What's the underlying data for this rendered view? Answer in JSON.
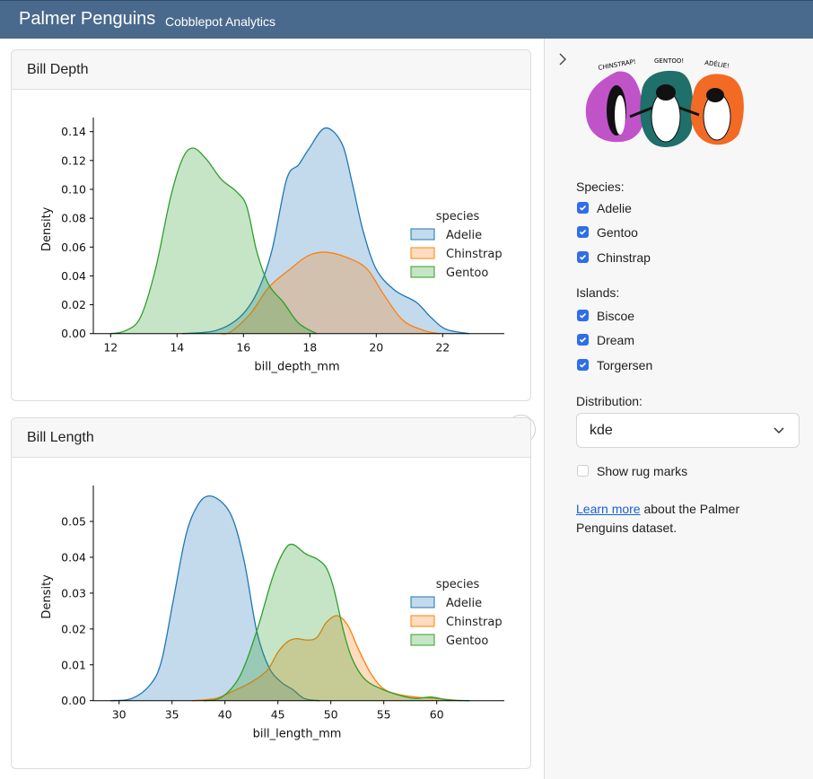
{
  "header": {
    "title": "Palmer Penguins",
    "subtitle": "Cobblepot Analytics"
  },
  "cards": [
    {
      "title": "Bill Depth"
    },
    {
      "title": "Bill Length"
    }
  ],
  "sidebar": {
    "toggle_icon": "chevron-right-icon",
    "logo_text": [
      "CHINSTRAP!",
      "GENTOO!",
      "ADÉLIE!"
    ],
    "species_label": "Species:",
    "species": [
      {
        "label": "Adelie",
        "checked": true
      },
      {
        "label": "Gentoo",
        "checked": true
      },
      {
        "label": "Chinstrap",
        "checked": true
      }
    ],
    "islands_label": "Islands:",
    "islands": [
      {
        "label": "Biscoe",
        "checked": true
      },
      {
        "label": "Dream",
        "checked": true
      },
      {
        "label": "Torgersen",
        "checked": true
      }
    ],
    "distribution_label": "Distribution:",
    "distribution_value": "kde",
    "rug_label": "Show rug marks",
    "rug_checked": false,
    "learn_link": "Learn more",
    "learn_text_1": " about the Palmer",
    "learn_text_2": "Penguins dataset.",
    "accent": "#2f6ee8"
  },
  "chart_data": [
    {
      "type": "area",
      "xlabel": "bill_depth_mm",
      "ylabel": "Density",
      "xlim": [
        11.5,
        23.5
      ],
      "ylim": [
        0,
        0.15
      ],
      "xticks": [
        "12",
        "14",
        "16",
        "18",
        "20",
        "22"
      ],
      "xtick_values": [
        12,
        14,
        16,
        18,
        20,
        22
      ],
      "yticks": [
        "0.00",
        "0.02",
        "0.04",
        "0.06",
        "0.08",
        "0.10",
        "0.12",
        "0.14"
      ],
      "ytick_values": [
        0,
        0.02,
        0.04,
        0.06,
        0.08,
        0.1,
        0.12,
        0.14
      ],
      "legend": {
        "title": "species",
        "placement": "center-right"
      },
      "series": [
        {
          "name": "Adelie",
          "color": "#1f77b4",
          "points": [
            [
              14.16,
              0
            ],
            [
              15.15,
              0.002
            ],
            [
              15.87,
              0.011
            ],
            [
              16.4,
              0.028
            ],
            [
              16.85,
              0.057
            ],
            [
              17.3,
              0.107
            ],
            [
              17.66,
              0.117
            ],
            [
              17.97,
              0.128
            ],
            [
              18.46,
              0.1425
            ],
            [
              18.96,
              0.132
            ],
            [
              19.27,
              0.105
            ],
            [
              19.6,
              0.0715
            ],
            [
              20.0,
              0.0446
            ],
            [
              20.56,
              0.03
            ],
            [
              21.2,
              0.0218
            ],
            [
              21.64,
              0.0114
            ],
            [
              22.1,
              0.003
            ],
            [
              22.8,
              0
            ]
          ]
        },
        {
          "name": "Chinstrap",
          "color": "#ff7f0e",
          "points": [
            [
              15.3,
              0
            ],
            [
              15.6,
              0.001
            ],
            [
              16.2,
              0.0135
            ],
            [
              16.76,
              0.032
            ],
            [
              17.4,
              0.0446
            ],
            [
              17.95,
              0.054
            ],
            [
              18.5,
              0.0564
            ],
            [
              19.2,
              0.052
            ],
            [
              19.73,
              0.0446
            ],
            [
              20.2,
              0.028
            ],
            [
              20.8,
              0.0093
            ],
            [
              21.46,
              0.002
            ],
            [
              21.9,
              0
            ]
          ]
        },
        {
          "name": "Gentoo",
          "color": "#2ca02c",
          "points": [
            [
              12.0,
              0
            ],
            [
              12.45,
              0.002
            ],
            [
              12.9,
              0.0114
            ],
            [
              13.35,
              0.0446
            ],
            [
              13.8,
              0.094
            ],
            [
              14.16,
              0.121
            ],
            [
              14.48,
              0.1286
            ],
            [
              14.88,
              0.121
            ],
            [
              15.33,
              0.107
            ],
            [
              15.78,
              0.0986
            ],
            [
              16.1,
              0.088
            ],
            [
              16.4,
              0.057
            ],
            [
              16.76,
              0.034
            ],
            [
              17.2,
              0.0218
            ],
            [
              17.66,
              0.0073
            ],
            [
              18.2,
              0
            ]
          ]
        }
      ]
    },
    {
      "type": "area",
      "xlabel": "bill_length_mm",
      "ylabel": "Density",
      "xlim": [
        27.5,
        64.5
      ],
      "ylim": [
        0,
        0.06
      ],
      "xticks": [
        "30",
        "35",
        "40",
        "45",
        "50",
        "55",
        "60"
      ],
      "xtick_values": [
        30,
        35,
        40,
        45,
        50,
        55,
        60
      ],
      "yticks": [
        "0.00",
        "0.01",
        "0.02",
        "0.03",
        "0.04",
        "0.05"
      ],
      "ytick_values": [
        0,
        0.01,
        0.02,
        0.03,
        0.04,
        0.05
      ],
      "legend": {
        "title": "species",
        "placement": "center-right"
      },
      "series": [
        {
          "name": "Adelie",
          "color": "#1f77b4",
          "points": [
            [
              29.2,
              0
            ],
            [
              31.2,
              0.0006
            ],
            [
              32.9,
              0.0043
            ],
            [
              34.0,
              0.011
            ],
            [
              35.1,
              0.0277
            ],
            [
              36.3,
              0.046
            ],
            [
              37.4,
              0.0544
            ],
            [
              38.5,
              0.0571
            ],
            [
              39.9,
              0.0548
            ],
            [
              40.9,
              0.0494
            ],
            [
              41.9,
              0.0377
            ],
            [
              43.0,
              0.0194
            ],
            [
              44.15,
              0.0093
            ],
            [
              45.3,
              0.0052
            ],
            [
              46.4,
              0.0031
            ],
            [
              47.5,
              0.0006
            ],
            [
              48.95,
              0
            ]
          ]
        },
        {
          "name": "Chinstrap",
          "color": "#ff7f0e",
          "points": [
            [
              36.9,
              0
            ],
            [
              39.1,
              0.0006
            ],
            [
              40.8,
              0.0027
            ],
            [
              42.5,
              0.0052
            ],
            [
              44.0,
              0.0085
            ],
            [
              45.0,
              0.0135
            ],
            [
              45.9,
              0.0164
            ],
            [
              46.7,
              0.0173
            ],
            [
              47.8,
              0.0169
            ],
            [
              48.7,
              0.0177
            ],
            [
              49.6,
              0.0219
            ],
            [
              50.6,
              0.0237
            ],
            [
              51.6,
              0.021
            ],
            [
              52.6,
              0.0144
            ],
            [
              53.75,
              0.0077
            ],
            [
              54.9,
              0.0035
            ],
            [
              56.3,
              0.0018
            ],
            [
              58.0,
              0.001
            ],
            [
              60.0,
              0.0006
            ],
            [
              62.2,
              0
            ]
          ]
        },
        {
          "name": "Gentoo",
          "color": "#2ca02c",
          "points": [
            [
              38.0,
              0
            ],
            [
              39.7,
              0.001
            ],
            [
              41.4,
              0.0068
            ],
            [
              43.0,
              0.0194
            ],
            [
              44.5,
              0.0344
            ],
            [
              45.6,
              0.0419
            ],
            [
              46.4,
              0.0436
            ],
            [
              47.6,
              0.041
            ],
            [
              48.75,
              0.0394
            ],
            [
              49.6,
              0.0369
            ],
            [
              50.3,
              0.031
            ],
            [
              51.2,
              0.0194
            ],
            [
              52.0,
              0.0118
            ],
            [
              53.2,
              0.006
            ],
            [
              54.9,
              0.0031
            ],
            [
              56.6,
              0.0014
            ],
            [
              58.0,
              0.0006
            ],
            [
              59.45,
              0.001
            ],
            [
              61.1,
              0.0002
            ],
            [
              63.1,
              0
            ]
          ]
        }
      ]
    }
  ]
}
